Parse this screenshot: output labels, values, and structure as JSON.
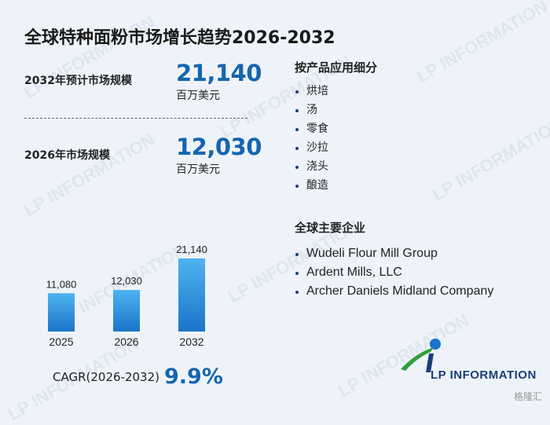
{
  "title": "全球特种面粉市场增长趋势2026-2032",
  "stats": [
    {
      "label": "2032年预计市场规模",
      "value": "21,140",
      "unit": "百万美元"
    },
    {
      "label": "2026年市场规模",
      "value": "12,030",
      "unit": "百万美元"
    }
  ],
  "cagr": {
    "label": "CAGR(2026-2032)",
    "value": "9.9%"
  },
  "segments": {
    "title": "按产品应用细分",
    "items": [
      "烘培",
      "汤",
      "零食",
      "沙拉",
      "浇头",
      "酿造"
    ]
  },
  "companies": {
    "title": "全球主要企业",
    "items": [
      "Wudeli Flour Mill Group",
      "Ardent Mills, LLC",
      "Archer Daniels Midland Company"
    ]
  },
  "logo": {
    "text": "LP INFORMATION"
  },
  "watermark": "LP INFORMATION",
  "badge": "格隆汇",
  "colors": {
    "accent": "#1565b0",
    "bar_top": "#4fb3f0",
    "bar_bottom": "#1a74c9"
  },
  "chart_data": {
    "type": "bar",
    "categories": [
      "2025",
      "2026",
      "2032"
    ],
    "values": [
      11080,
      12030,
      21140
    ],
    "value_labels": [
      "11,080",
      "12,030",
      "21,140"
    ],
    "title": "",
    "xlabel": "",
    "ylabel": "",
    "grid": false
  }
}
